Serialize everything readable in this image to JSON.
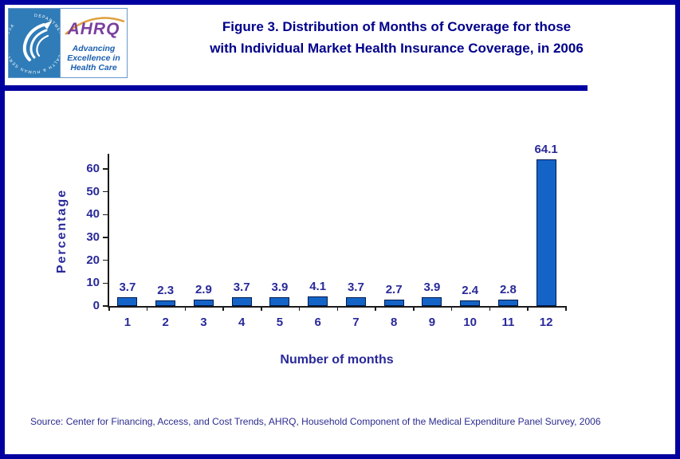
{
  "header": {
    "logo": {
      "seal_text": "DEPARTMENT OF HEALTH & HUMAN SERVICES · USA",
      "ahrq": "AHRQ",
      "tagline_line1": "Advancing",
      "tagline_line2": "Excellence in",
      "tagline_line3": "Health Care"
    },
    "title_line1": "Figure 3. Distribution of Months of Coverage for those",
    "title_line2": "with Individual Market Health Insurance Coverage, in 2006"
  },
  "chart_data": {
    "type": "bar",
    "categories": [
      "1",
      "2",
      "3",
      "4",
      "5",
      "6",
      "7",
      "8",
      "9",
      "10",
      "11",
      "12"
    ],
    "values": [
      3.7,
      2.3,
      2.9,
      3.7,
      3.9,
      4.1,
      3.7,
      2.7,
      3.9,
      2.4,
      2.8,
      64.1
    ],
    "value_labels": [
      "3.7",
      "2.3",
      "2.9",
      "3.7",
      "3.9",
      "4.1",
      "3.7",
      "2.7",
      "3.9",
      "2.4",
      "2.8",
      "64.1"
    ],
    "title": "",
    "xlabel": "Number of months",
    "ylabel": "Percentage",
    "ylim": [
      0,
      60
    ],
    "yticks": [
      0,
      10,
      20,
      30,
      40,
      50,
      60
    ],
    "grid": false,
    "legend": "none",
    "bar_color": "#1464C8",
    "bar_border_color": "#001A4D"
  },
  "footer": {
    "source": "Source: Center for Financing, Access, and Cost Trends, AHRQ, Household Component of the Medical Expenditure Panel Survey, 2006"
  },
  "colors": {
    "frame_navy": "#0101A0",
    "title_text": "#00008B",
    "chart_text": "#29299A",
    "seal_blue": "#2F7CB8",
    "ahrq_purple": "#7B3F9E",
    "swoosh_orange": "#DFA13E",
    "tagline_blue": "#1B5FAF"
  }
}
